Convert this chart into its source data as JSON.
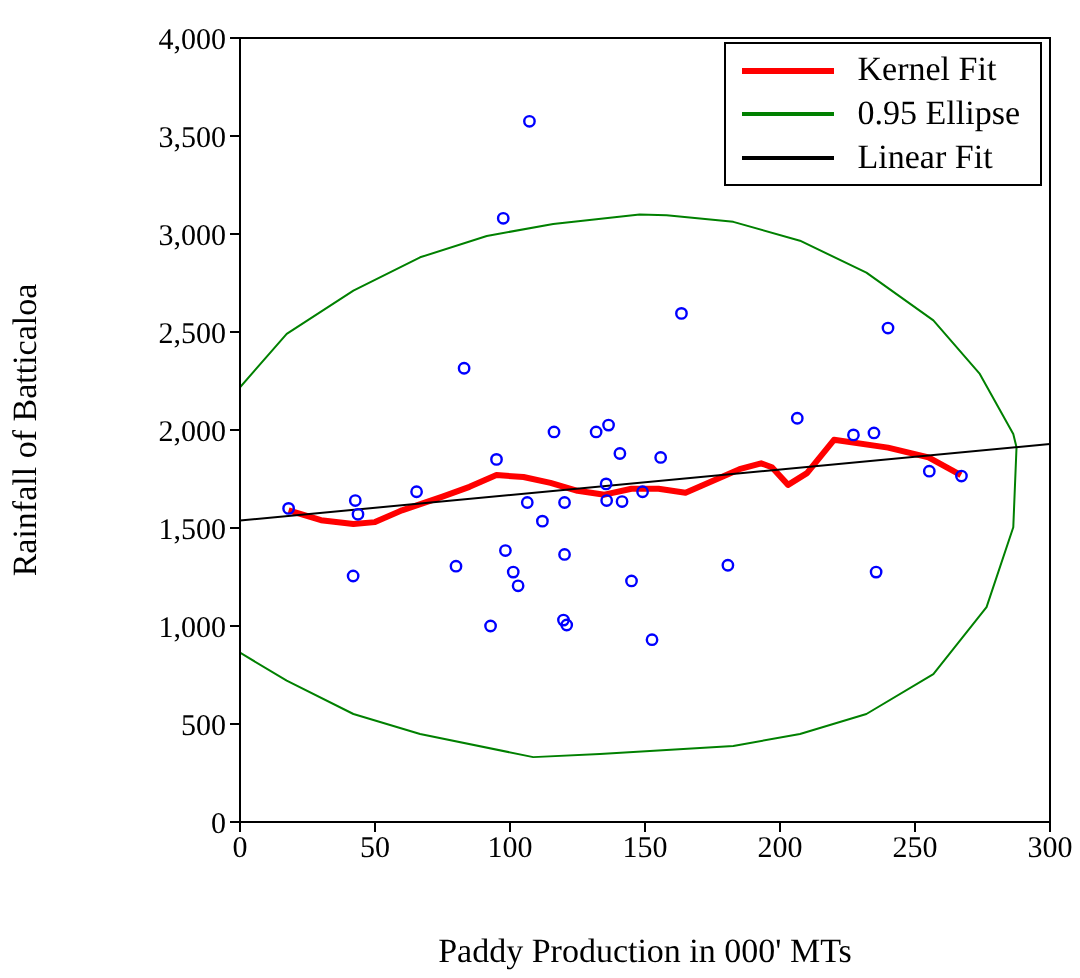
{
  "chart_data": {
    "type": "scatter",
    "xlabel": "Paddy Production in 000' MTs",
    "ylabel": "Rainfall of Batticaloa",
    "xlim": [
      0,
      300
    ],
    "xticks": [
      0,
      50,
      100,
      150,
      200,
      250,
      300
    ],
    "ylim": [
      0,
      4000
    ],
    "yticks": [
      0,
      500,
      {
        "value": 1000,
        "label": "1,000"
      },
      {
        "value": 1500,
        "label": "1,500"
      },
      {
        "value": 2000,
        "label": "2,000"
      },
      {
        "value": 2500,
        "label": "2,500"
      },
      {
        "value": 3000,
        "label": "3,000"
      },
      {
        "value": 3500,
        "label": "3,500"
      },
      {
        "value": 4000,
        "label": "4,000"
      }
    ],
    "grid": false,
    "legend": "top right",
    "series": [
      {
        "color": "#0000ff",
        "marker": "circle",
        "x": [
          18,
          42.7,
          43.7,
          41.9,
          65.4,
          80,
          95,
          92.8,
          98.3,
          101.2,
          103,
          106.4,
          112,
          120.2,
          120.2,
          119.8,
          121,
          135.6,
          135.8,
          140.7,
          141.5,
          145,
          83,
          97.5,
          107.2,
          116.3,
          131.9,
          136.5,
          163.5,
          240,
          206.4,
          227.2,
          234.8,
          155.8,
          149.1,
          152.6,
          180.7,
          235.6,
          255.3,
          267.2
        ],
        "values": [
          1600,
          1640,
          1570,
          1255,
          1685,
          1305,
          1850,
          1000,
          1385,
          1275,
          1205,
          1630,
          1535,
          1630,
          1365,
          1030,
          1005,
          1725,
          1640,
          1880,
          1635,
          1230,
          2315,
          3080,
          3575,
          1990,
          1990,
          2025,
          2595,
          2520,
          2060,
          1975,
          1985,
          1860,
          1685,
          930,
          1310,
          1275,
          1790,
          1765
        ]
      },
      {
        "type": "line",
        "name": "Kernel Fit",
        "color": "#ff0000",
        "marker": "none",
        "x": [
          18,
          30,
          42,
          50,
          60,
          75,
          85,
          95,
          105,
          115,
          125,
          135,
          145,
          155,
          165,
          175,
          185,
          193,
          197,
          203,
          210,
          220,
          240,
          255,
          267
        ],
        "values": [
          1590,
          1540,
          1520,
          1530,
          1590,
          1660,
          1710,
          1770,
          1760,
          1730,
          1690,
          1670,
          1700,
          1700,
          1680,
          1740,
          1800,
          1830,
          1810,
          1720,
          1780,
          1950,
          1910,
          1860,
          1770
        ]
      },
      {
        "type": "line",
        "name": "0.95 Ellipse",
        "color": "#008000",
        "marker": "none",
        "x": [
          0,
          17.3,
          42,
          66.7,
          91.4,
          116,
          148,
          158,
          182.7,
          207.4,
          232,
          256.8,
          274,
          286.4,
          287.6,
          286.4,
          276.5,
          256.8,
          232,
          207.4,
          182.7,
          133.3,
          108.6,
          66.7,
          42,
          17.3,
          0
        ],
        "values": [
          2218,
          2490,
          2711,
          2881,
          2990,
          3051,
          3099,
          3096,
          3062,
          2966,
          2803,
          2559,
          2286,
          1980,
          1912,
          1504,
          1096,
          755,
          551,
          449,
          388,
          347,
          331,
          449,
          551,
          721,
          864
        ]
      },
      {
        "type": "line",
        "name": "Linear Fit",
        "color": "#000000",
        "marker": "none",
        "x": [
          0,
          300
        ],
        "values": [
          1538,
          1929
        ]
      }
    ]
  }
}
